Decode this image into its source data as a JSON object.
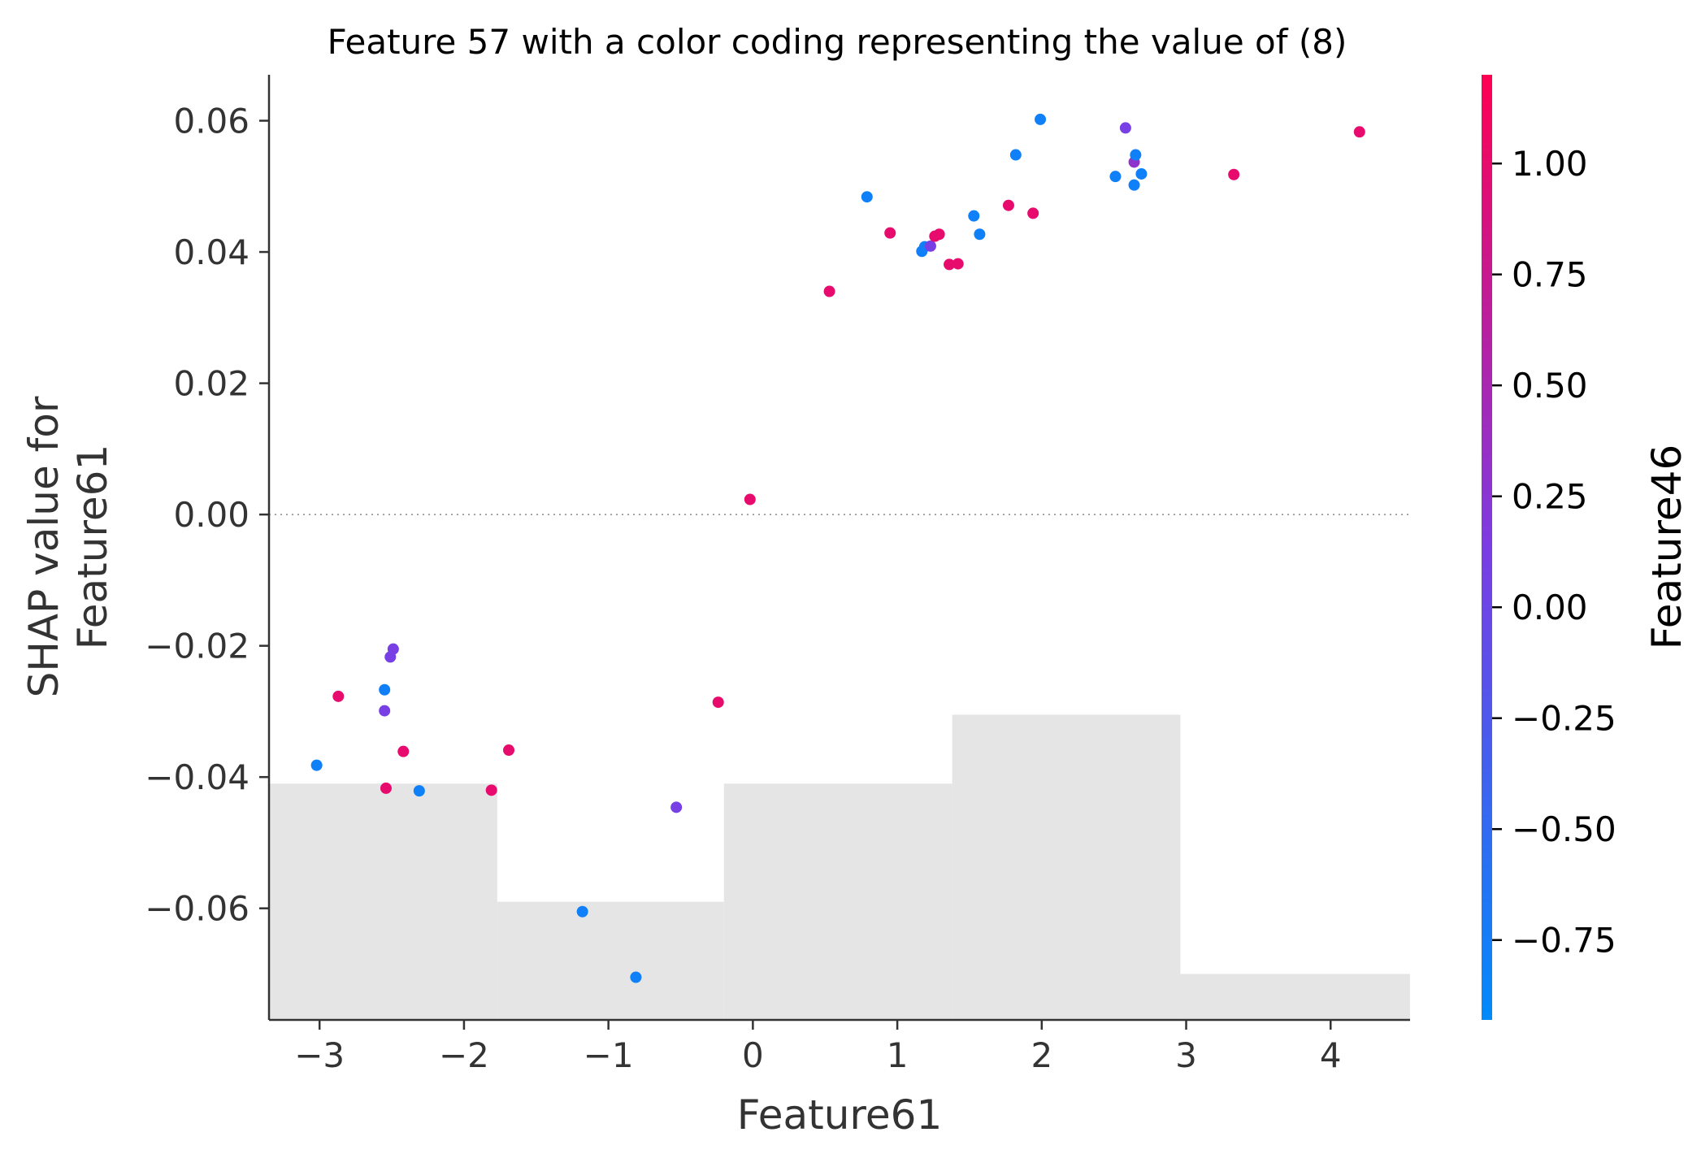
{
  "chart_data": {
    "type": "scatter",
    "title": "Feature 57 with a color coding representing the value of (8)",
    "xlabel": "Feature61",
    "ylabel_lines": [
      "SHAP value for",
      "Feature61"
    ],
    "xlim": [
      -3.35,
      4.55
    ],
    "ylim": [
      -0.077,
      0.067
    ],
    "xticks": [
      -3,
      -2,
      -1,
      0,
      1,
      2,
      3,
      4
    ],
    "xtick_labels": [
      "−3",
      "−2",
      "−1",
      "0",
      "1",
      "2",
      "3",
      "4"
    ],
    "yticks": [
      0.06,
      0.04,
      0.02,
      0.0,
      -0.02,
      -0.04,
      -0.06
    ],
    "ytick_labels": [
      "0.06",
      "0.04",
      "0.02",
      "0.00",
      "−0.02",
      "−0.04",
      "−0.06"
    ],
    "zero_line": true,
    "background_histogram": {
      "edges": [
        -3.35,
        -1.77,
        -0.2,
        1.38,
        2.96,
        4.55
      ],
      "heights": [
        -0.041,
        -0.059,
        -0.041,
        -0.0305,
        -0.07
      ],
      "baseline": -0.077,
      "color": "#e5e5e5"
    },
    "colorbar": {
      "label": "Feature46",
      "range": [
        -0.93,
        1.2
      ],
      "ticks": [
        1.0,
        0.75,
        0.5,
        0.25,
        0.0,
        -0.25,
        -0.5,
        -0.75
      ],
      "tick_labels": [
        "1.00",
        "0.75",
        "0.50",
        "0.25",
        "0.00",
        "−0.25",
        "−0.50",
        "−0.75"
      ],
      "colormap": [
        "#008afb",
        "#7b3ce3",
        "#ff0052"
      ]
    },
    "points": [
      {
        "x": -3.02,
        "y": -0.0382,
        "c": -0.8
      },
      {
        "x": -2.87,
        "y": -0.0277,
        "c": 1.0
      },
      {
        "x": -2.55,
        "y": -0.0267,
        "c": -0.8
      },
      {
        "x": -2.55,
        "y": -0.0299,
        "c": 0.1
      },
      {
        "x": -2.54,
        "y": -0.0417,
        "c": 1.0
      },
      {
        "x": -2.51,
        "y": -0.0217,
        "c": 0.1
      },
      {
        "x": -2.49,
        "y": -0.0205,
        "c": 0.1
      },
      {
        "x": -2.42,
        "y": -0.0361,
        "c": 1.0
      },
      {
        "x": -2.31,
        "y": -0.0421,
        "c": -0.8
      },
      {
        "x": -1.81,
        "y": -0.042,
        "c": 1.0
      },
      {
        "x": -1.69,
        "y": -0.0359,
        "c": 1.0
      },
      {
        "x": -1.18,
        "y": -0.0605,
        "c": -0.8
      },
      {
        "x": -0.81,
        "y": -0.0705,
        "c": -0.8
      },
      {
        "x": -0.53,
        "y": -0.0446,
        "c": 0.1
      },
      {
        "x": -0.24,
        "y": -0.0286,
        "c": 1.0
      },
      {
        "x": -0.02,
        "y": 0.0023,
        "c": 1.0
      },
      {
        "x": 0.53,
        "y": 0.034,
        "c": 1.0
      },
      {
        "x": 0.79,
        "y": 0.0484,
        "c": -0.8
      },
      {
        "x": 0.95,
        "y": 0.0429,
        "c": 1.0
      },
      {
        "x": 1.17,
        "y": 0.0401,
        "c": -0.8
      },
      {
        "x": 1.19,
        "y": 0.0408,
        "c": -0.8
      },
      {
        "x": 1.23,
        "y": 0.0409,
        "c": 0.1
      },
      {
        "x": 1.26,
        "y": 0.0424,
        "c": 1.0
      },
      {
        "x": 1.29,
        "y": 0.0427,
        "c": 1.0
      },
      {
        "x": 1.36,
        "y": 0.0381,
        "c": 1.0
      },
      {
        "x": 1.42,
        "y": 0.0382,
        "c": 1.0
      },
      {
        "x": 1.53,
        "y": 0.0455,
        "c": -0.8
      },
      {
        "x": 1.57,
        "y": 0.0427,
        "c": -0.8
      },
      {
        "x": 1.77,
        "y": 0.0471,
        "c": 1.0
      },
      {
        "x": 1.82,
        "y": 0.0548,
        "c": -0.8
      },
      {
        "x": 1.94,
        "y": 0.0459,
        "c": 1.0
      },
      {
        "x": 1.99,
        "y": 0.0602,
        "c": -0.8
      },
      {
        "x": 2.51,
        "y": 0.0515,
        "c": -0.8
      },
      {
        "x": 2.58,
        "y": 0.0589,
        "c": 0.1
      },
      {
        "x": 2.64,
        "y": 0.0537,
        "c": 0.3
      },
      {
        "x": 2.65,
        "y": 0.0548,
        "c": -0.8
      },
      {
        "x": 2.64,
        "y": 0.0502,
        "c": -0.8
      },
      {
        "x": 2.69,
        "y": 0.0519,
        "c": -0.8
      },
      {
        "x": 3.33,
        "y": 0.0518,
        "c": 1.0
      },
      {
        "x": 4.2,
        "y": 0.0583,
        "c": 1.0
      }
    ]
  }
}
